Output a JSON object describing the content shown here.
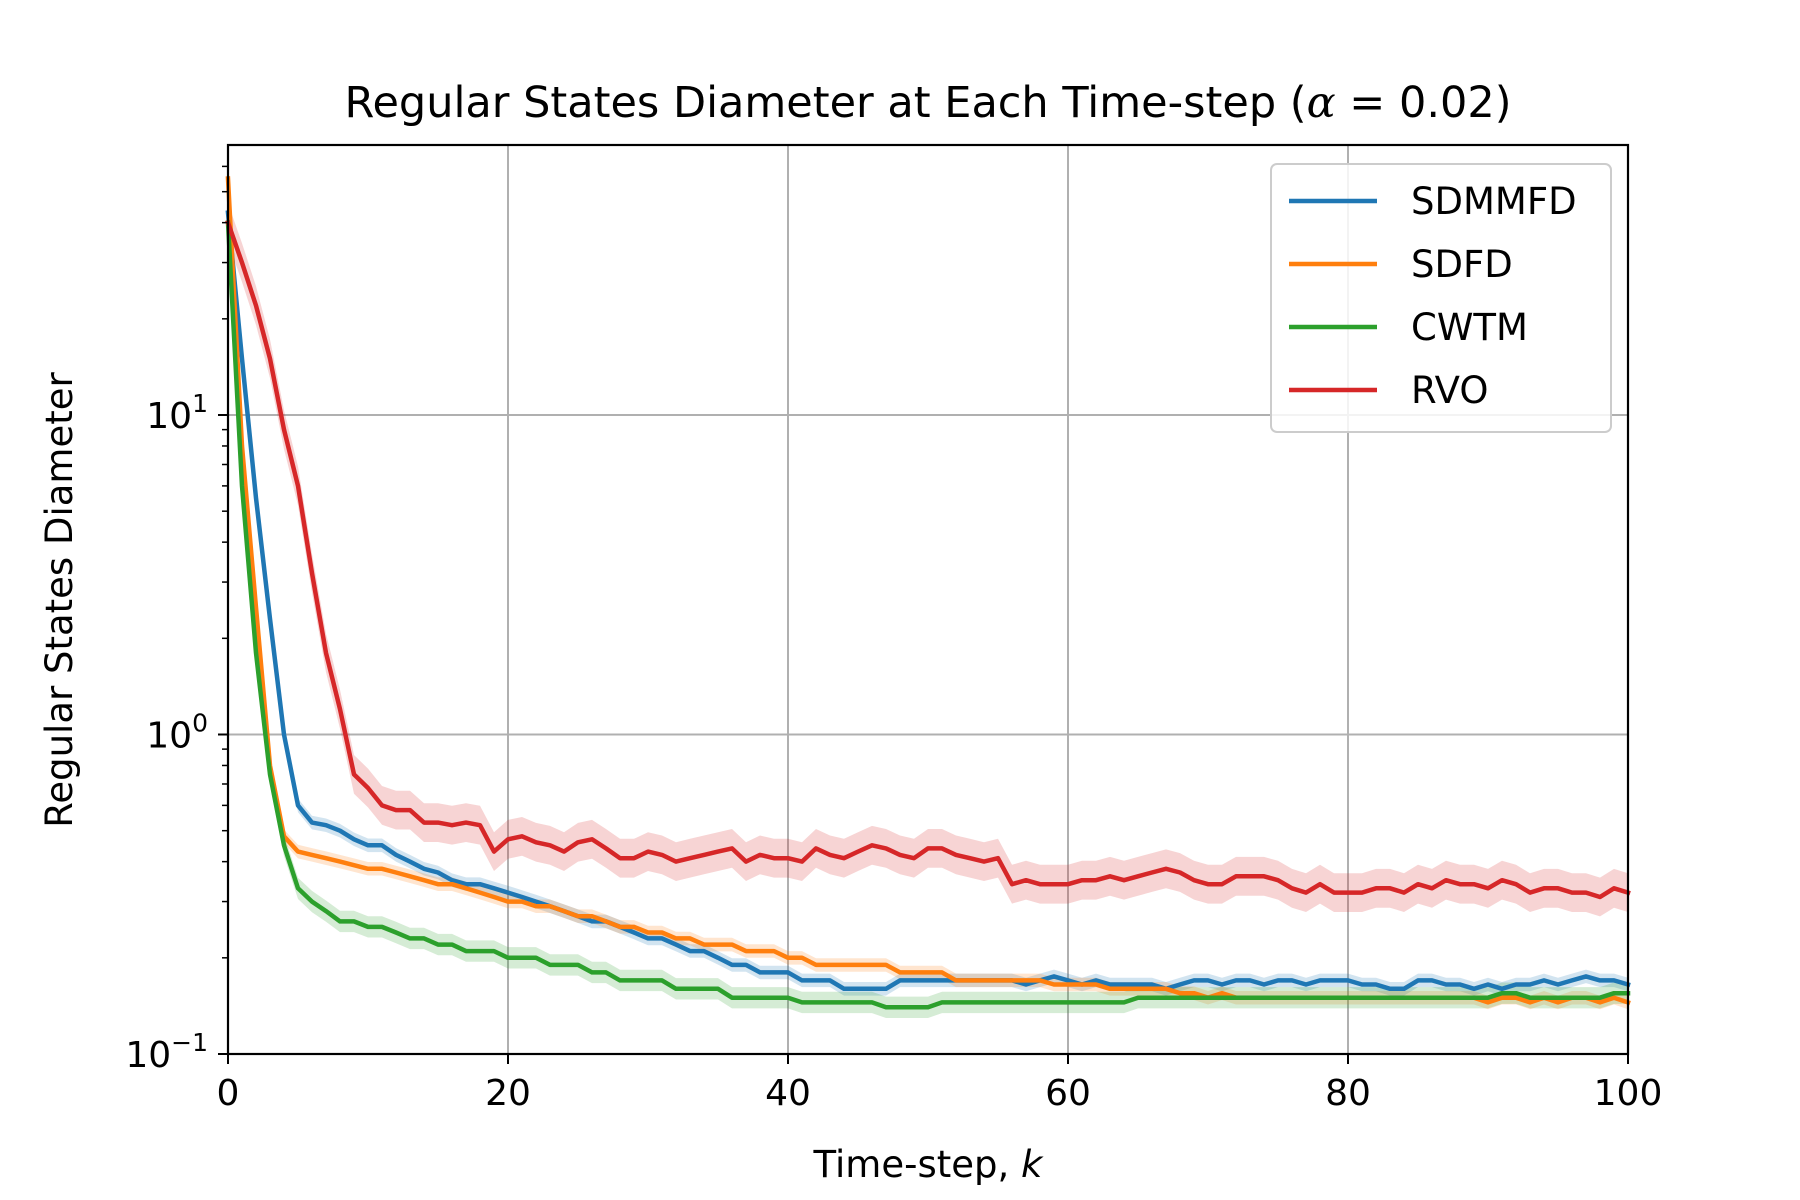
{
  "chart_data": {
    "type": "line",
    "title": "Regular States Diameter at Each Time-step (α = 0.02)",
    "title_parts": {
      "prefix": "Regular States Diameter at Each Time-step (",
      "symbol": "α",
      "suffix": " = 0.02)"
    },
    "xlabel": "Time-step, k",
    "xlabel_parts": {
      "prefix": "Time-step, ",
      "var": "k"
    },
    "ylabel": "Regular States Diameter",
    "xlim": [
      0,
      100
    ],
    "ylim": [
      0.1,
      70
    ],
    "yscale": "log",
    "grid": true,
    "legend_position": "top-right",
    "x_ticks": [
      0,
      20,
      40,
      60,
      80,
      100
    ],
    "x_tick_labels": [
      "0",
      "20",
      "40",
      "60",
      "80",
      "100"
    ],
    "y_ticks": [
      {
        "value": 0.1,
        "base": "10",
        "exp": "−1"
      },
      {
        "value": 1,
        "base": "10",
        "exp": "0"
      },
      {
        "value": 10,
        "base": "10",
        "exp": "1"
      }
    ],
    "x": [
      0,
      1,
      2,
      3,
      4,
      5,
      6,
      7,
      8,
      9,
      10,
      11,
      12,
      13,
      14,
      15,
      16,
      17,
      18,
      19,
      20,
      21,
      22,
      23,
      24,
      25,
      26,
      27,
      28,
      29,
      30,
      31,
      32,
      33,
      34,
      35,
      36,
      37,
      38,
      39,
      40,
      41,
      42,
      43,
      44,
      45,
      46,
      47,
      48,
      49,
      50,
      51,
      52,
      53,
      54,
      55,
      56,
      57,
      58,
      59,
      60,
      61,
      62,
      63,
      64,
      65,
      66,
      67,
      68,
      69,
      70,
      71,
      72,
      73,
      74,
      75,
      76,
      77,
      78,
      79,
      80,
      81,
      82,
      83,
      84,
      85,
      86,
      87,
      88,
      89,
      90,
      91,
      92,
      93,
      94,
      95,
      96,
      97,
      98,
      99,
      100
    ],
    "series": [
      {
        "name": "SDMMFD",
        "color": "#1f77b4",
        "values": [
          43,
          15,
          5.5,
          2.3,
          1.0,
          0.6,
          0.53,
          0.52,
          0.5,
          0.47,
          0.45,
          0.45,
          0.42,
          0.4,
          0.38,
          0.37,
          0.35,
          0.34,
          0.34,
          0.33,
          0.32,
          0.31,
          0.3,
          0.29,
          0.28,
          0.27,
          0.26,
          0.26,
          0.25,
          0.24,
          0.23,
          0.23,
          0.22,
          0.21,
          0.21,
          0.2,
          0.19,
          0.19,
          0.18,
          0.18,
          0.18,
          0.17,
          0.17,
          0.17,
          0.16,
          0.16,
          0.16,
          0.16,
          0.17,
          0.17,
          0.17,
          0.17,
          0.17,
          0.17,
          0.17,
          0.17,
          0.17,
          0.165,
          0.17,
          0.175,
          0.17,
          0.165,
          0.17,
          0.165,
          0.165,
          0.165,
          0.165,
          0.16,
          0.165,
          0.17,
          0.17,
          0.165,
          0.17,
          0.17,
          0.165,
          0.17,
          0.17,
          0.165,
          0.17,
          0.17,
          0.17,
          0.165,
          0.165,
          0.16,
          0.16,
          0.17,
          0.17,
          0.165,
          0.165,
          0.16,
          0.165,
          0.16,
          0.165,
          0.165,
          0.17,
          0.165,
          0.17,
          0.175,
          0.17,
          0.17,
          0.165
        ],
        "band_width": 0.05
      },
      {
        "name": "SDFD",
        "color": "#ff7f0e",
        "values": [
          55,
          8,
          2.5,
          0.8,
          0.48,
          0.43,
          0.42,
          0.41,
          0.4,
          0.39,
          0.38,
          0.38,
          0.37,
          0.36,
          0.35,
          0.34,
          0.34,
          0.33,
          0.32,
          0.31,
          0.3,
          0.3,
          0.29,
          0.29,
          0.28,
          0.27,
          0.27,
          0.26,
          0.25,
          0.25,
          0.24,
          0.24,
          0.23,
          0.23,
          0.22,
          0.22,
          0.22,
          0.21,
          0.21,
          0.21,
          0.2,
          0.2,
          0.19,
          0.19,
          0.19,
          0.19,
          0.19,
          0.19,
          0.18,
          0.18,
          0.18,
          0.18,
          0.17,
          0.17,
          0.17,
          0.17,
          0.17,
          0.17,
          0.17,
          0.165,
          0.165,
          0.165,
          0.165,
          0.16,
          0.16,
          0.16,
          0.16,
          0.16,
          0.155,
          0.155,
          0.15,
          0.155,
          0.15,
          0.15,
          0.15,
          0.15,
          0.15,
          0.15,
          0.15,
          0.15,
          0.15,
          0.15,
          0.15,
          0.15,
          0.15,
          0.15,
          0.15,
          0.15,
          0.15,
          0.15,
          0.145,
          0.15,
          0.15,
          0.145,
          0.15,
          0.145,
          0.15,
          0.15,
          0.145,
          0.15,
          0.145
        ],
        "band_width": 0.05
      },
      {
        "name": "CWTM",
        "color": "#2ca02c",
        "values": [
          40,
          6,
          1.8,
          0.75,
          0.45,
          0.33,
          0.3,
          0.28,
          0.26,
          0.26,
          0.25,
          0.25,
          0.24,
          0.23,
          0.23,
          0.22,
          0.22,
          0.21,
          0.21,
          0.21,
          0.2,
          0.2,
          0.2,
          0.19,
          0.19,
          0.19,
          0.18,
          0.18,
          0.17,
          0.17,
          0.17,
          0.17,
          0.16,
          0.16,
          0.16,
          0.16,
          0.15,
          0.15,
          0.15,
          0.15,
          0.15,
          0.145,
          0.145,
          0.145,
          0.145,
          0.145,
          0.145,
          0.14,
          0.14,
          0.14,
          0.14,
          0.145,
          0.145,
          0.145,
          0.145,
          0.145,
          0.145,
          0.145,
          0.145,
          0.145,
          0.145,
          0.145,
          0.145,
          0.145,
          0.145,
          0.15,
          0.15,
          0.15,
          0.15,
          0.15,
          0.15,
          0.15,
          0.15,
          0.15,
          0.15,
          0.15,
          0.15,
          0.15,
          0.15,
          0.15,
          0.15,
          0.15,
          0.15,
          0.15,
          0.15,
          0.15,
          0.15,
          0.15,
          0.15,
          0.15,
          0.15,
          0.155,
          0.155,
          0.15,
          0.15,
          0.15,
          0.15,
          0.15,
          0.15,
          0.155,
          0.155
        ],
        "band_width": 0.08
      },
      {
        "name": "RVO",
        "color": "#d62728",
        "values": [
          40,
          30,
          22,
          15,
          9,
          6,
          3.2,
          1.8,
          1.2,
          0.75,
          0.68,
          0.6,
          0.58,
          0.58,
          0.53,
          0.53,
          0.52,
          0.53,
          0.52,
          0.43,
          0.47,
          0.48,
          0.46,
          0.45,
          0.43,
          0.46,
          0.47,
          0.44,
          0.41,
          0.41,
          0.43,
          0.42,
          0.4,
          0.41,
          0.42,
          0.43,
          0.44,
          0.4,
          0.42,
          0.41,
          0.41,
          0.4,
          0.44,
          0.42,
          0.41,
          0.43,
          0.45,
          0.44,
          0.42,
          0.41,
          0.44,
          0.44,
          0.42,
          0.41,
          0.4,
          0.41,
          0.34,
          0.35,
          0.34,
          0.34,
          0.34,
          0.35,
          0.35,
          0.36,
          0.35,
          0.36,
          0.37,
          0.38,
          0.37,
          0.35,
          0.34,
          0.34,
          0.36,
          0.36,
          0.36,
          0.35,
          0.33,
          0.32,
          0.34,
          0.32,
          0.32,
          0.32,
          0.33,
          0.33,
          0.32,
          0.34,
          0.33,
          0.35,
          0.34,
          0.34,
          0.33,
          0.35,
          0.34,
          0.32,
          0.33,
          0.33,
          0.32,
          0.32,
          0.31,
          0.33,
          0.32
        ],
        "band_width": 0.15
      }
    ]
  }
}
